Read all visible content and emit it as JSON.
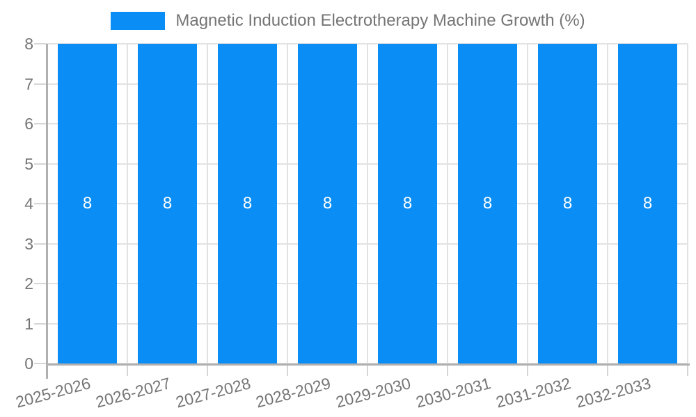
{
  "legend": {
    "label": "Magnetic Induction Electrotherapy Machine Growth (%)"
  },
  "chart_data": {
    "type": "bar",
    "title": "Magnetic Induction Electrotherapy Machine Growth (%)",
    "categories": [
      "2025-2026",
      "2026-2027",
      "2027-2028",
      "2028-2029",
      "2029-2030",
      "2030-2031",
      "2031-2032",
      "2032-2033"
    ],
    "values": [
      8,
      8,
      8,
      8,
      8,
      8,
      8,
      8
    ],
    "bar_value_labels": [
      "8",
      "8",
      "8",
      "8",
      "8",
      "8",
      "8",
      "8"
    ],
    "xlabel": "",
    "ylabel": "",
    "ylim": [
      0,
      8
    ],
    "yticks": [
      0,
      1,
      2,
      3,
      4,
      5,
      6,
      7,
      8
    ],
    "grid": true,
    "legend_position": "top-center",
    "x_tick_rotation_deg": -15
  },
  "colors": {
    "bar": "#0a8df5",
    "text": "#757575",
    "grid": "#e2e2e2",
    "tick": "#d6d6d6",
    "axis": "#b0b0b0",
    "value_label": "#ffffff",
    "background": "#ffffff"
  }
}
